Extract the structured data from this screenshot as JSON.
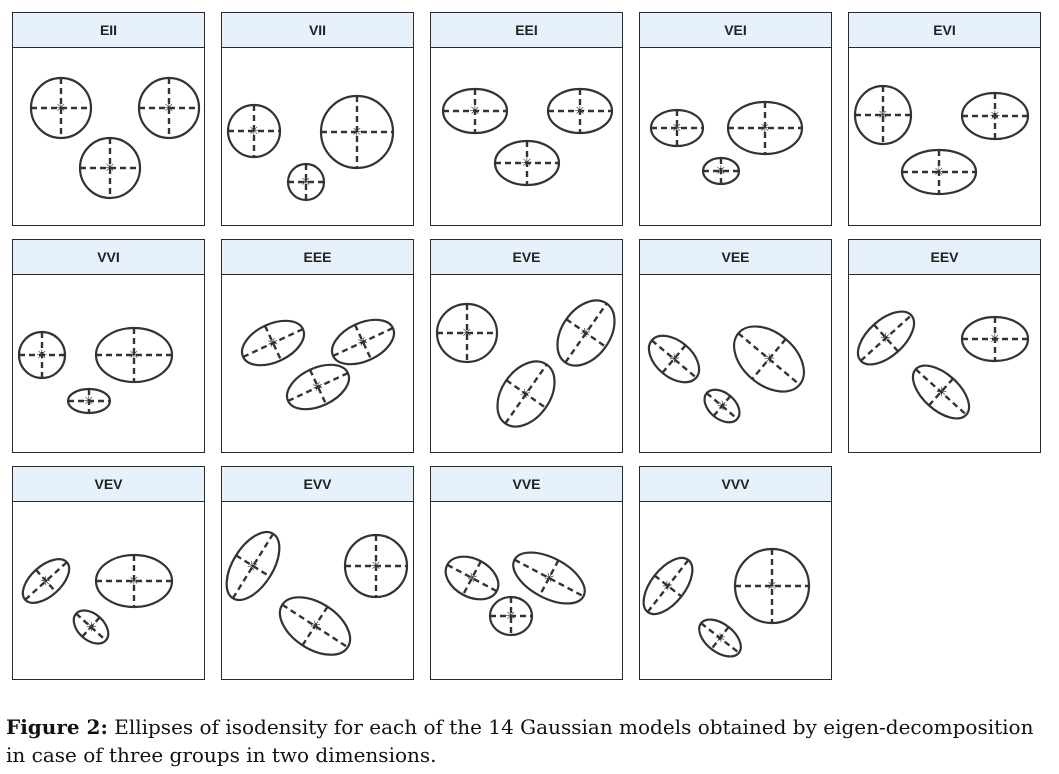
{
  "figure": {
    "panels": [
      {
        "label": "EII",
        "ellipses": [
          {
            "x": 48,
            "y": 60,
            "rx": 30,
            "ry": 30,
            "rot": 0
          },
          {
            "x": 156,
            "y": 60,
            "rx": 30,
            "ry": 30,
            "rot": 0
          },
          {
            "x": 97,
            "y": 120,
            "rx": 30,
            "ry": 30,
            "rot": 0
          }
        ]
      },
      {
        "label": "VII",
        "ellipses": [
          {
            "x": 32,
            "y": 83,
            "rx": 26,
            "ry": 26,
            "rot": 0
          },
          {
            "x": 135,
            "y": 84,
            "rx": 36,
            "ry": 36,
            "rot": 0
          },
          {
            "x": 84,
            "y": 134,
            "rx": 18,
            "ry": 18,
            "rot": 0
          }
        ]
      },
      {
        "label": "EEI",
        "ellipses": [
          {
            "x": 44,
            "y": 63,
            "rx": 32,
            "ry": 22,
            "rot": 0
          },
          {
            "x": 149,
            "y": 63,
            "rx": 32,
            "ry": 22,
            "rot": 0
          },
          {
            "x": 96,
            "y": 115,
            "rx": 32,
            "ry": 22,
            "rot": 0
          }
        ]
      },
      {
        "label": "VEI",
        "ellipses": [
          {
            "x": 37,
            "y": 80,
            "rx": 26,
            "ry": 18,
            "rot": 0
          },
          {
            "x": 125,
            "y": 80,
            "rx": 37,
            "ry": 26,
            "rot": 0
          },
          {
            "x": 81,
            "y": 123,
            "rx": 18,
            "ry": 13,
            "rot": 0
          }
        ]
      },
      {
        "label": "EVI",
        "ellipses": [
          {
            "x": 34,
            "y": 67,
            "rx": 28,
            "ry": 29,
            "rot": 0
          },
          {
            "x": 146,
            "y": 68,
            "rx": 33,
            "ry": 23,
            "rot": 0
          },
          {
            "x": 90,
            "y": 124,
            "rx": 37,
            "ry": 22,
            "rot": 0
          }
        ]
      },
      {
        "label": "VVI",
        "ellipses": [
          {
            "x": 29,
            "y": 80,
            "rx": 23,
            "ry": 23,
            "rot": 0
          },
          {
            "x": 121,
            "y": 80,
            "rx": 38,
            "ry": 27,
            "rot": 0
          },
          {
            "x": 76,
            "y": 126,
            "rx": 21,
            "ry": 12,
            "rot": 0
          }
        ]
      },
      {
        "label": "EEE",
        "ellipses": [
          {
            "x": 51,
            "y": 68,
            "rx": 33,
            "ry": 19,
            "rot": -25
          },
          {
            "x": 141,
            "y": 67,
            "rx": 33,
            "ry": 19,
            "rot": -25
          },
          {
            "x": 96,
            "y": 112,
            "rx": 33,
            "ry": 19,
            "rot": -25
          }
        ]
      },
      {
        "label": "EVE",
        "ellipses": [
          {
            "x": 36,
            "y": 58,
            "rx": 30,
            "ry": 29,
            "rot": 0
          },
          {
            "x": 155,
            "y": 58,
            "rx": 36,
            "ry": 24,
            "rot": -55
          },
          {
            "x": 95,
            "y": 119,
            "rx": 36,
            "ry": 24,
            "rot": -55
          }
        ]
      },
      {
        "label": "VEE",
        "ellipses": [
          {
            "x": 34,
            "y": 84,
            "rx": 29,
            "ry": 18,
            "rot": 40
          },
          {
            "x": 129,
            "y": 84,
            "rx": 40,
            "ry": 26,
            "rot": 40
          },
          {
            "x": 82,
            "y": 131,
            "rx": 20,
            "ry": 13,
            "rot": 40
          }
        ]
      },
      {
        "label": "EEV",
        "ellipses": [
          {
            "x": 37,
            "y": 63,
            "rx": 34,
            "ry": 18,
            "rot": -42
          },
          {
            "x": 146,
            "y": 64,
            "rx": 33,
            "ry": 22,
            "rot": 0
          },
          {
            "x": 92,
            "y": 117,
            "rx": 34,
            "ry": 18,
            "rot": 42
          }
        ]
      },
      {
        "label": "VEV",
        "ellipses": [
          {
            "x": 33,
            "y": 79,
            "rx": 28,
            "ry": 15,
            "rot": -42
          },
          {
            "x": 121,
            "y": 79,
            "rx": 38,
            "ry": 26,
            "rot": 0
          },
          {
            "x": 78,
            "y": 125,
            "rx": 20,
            "ry": 13,
            "rot": 42
          }
        ]
      },
      {
        "label": "EVV",
        "ellipses": [
          {
            "x": 31,
            "y": 64,
            "rx": 38,
            "ry": 20,
            "rot": -58
          },
          {
            "x": 154,
            "y": 64,
            "rx": 31,
            "ry": 31,
            "rot": 0
          },
          {
            "x": 93,
            "y": 124,
            "rx": 39,
            "ry": 23,
            "rot": 33
          }
        ]
      },
      {
        "label": "VVE",
        "ellipses": [
          {
            "x": 41,
            "y": 76,
            "rx": 28,
            "ry": 19,
            "rot": 28
          },
          {
            "x": 118,
            "y": 76,
            "rx": 39,
            "ry": 20,
            "rot": 28
          },
          {
            "x": 80,
            "y": 114,
            "rx": 21,
            "ry": 19,
            "rot": 0
          }
        ]
      },
      {
        "label": "VVV",
        "ellipses": [
          {
            "x": 28,
            "y": 84,
            "rx": 33,
            "ry": 17,
            "rot": -52
          },
          {
            "x": 132,
            "y": 84,
            "rx": 37,
            "ry": 37,
            "rot": 0
          },
          {
            "x": 80,
            "y": 136,
            "rx": 24,
            "ry": 14,
            "rot": 38
          }
        ]
      }
    ],
    "caption": {
      "label": "Figure 2:",
      "text": " Ellipses of isodensity for each of the 14 Gaussian models obtained by eigen-decomposition in case of three groups in two dimensions."
    }
  },
  "style": {
    "header_bg": "#e6f1fb",
    "stroke": "#333333"
  }
}
